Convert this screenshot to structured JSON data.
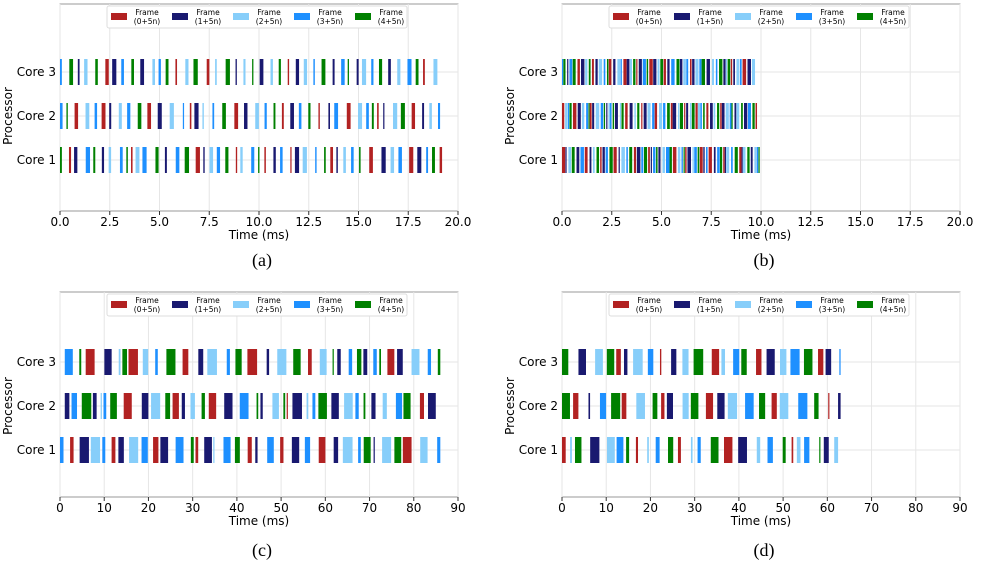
{
  "colors": {
    "frame0": "#b22222",
    "frame1": "#191970",
    "frame2": "#87cefa",
    "frame3": "#1e90ff",
    "frame4": "#008000"
  },
  "legend_entries": [
    {
      "line1": "Frame",
      "line2": "(0+5n)",
      "color_key": "frame0"
    },
    {
      "line1": "Frame",
      "line2": "(1+5n)",
      "color_key": "frame1"
    },
    {
      "line1": "Frame",
      "line2": "(2+5n)",
      "color_key": "frame2"
    },
    {
      "line1": "Frame",
      "line2": "(3+5n)",
      "color_key": "frame3"
    },
    {
      "line1": "Frame",
      "line2": "(4+5n)",
      "color_key": "frame4"
    }
  ],
  "chart_data": [
    {
      "type": "gantt",
      "caption": "(a)",
      "xlabel": "Time (ms)",
      "ylabel": "Processor",
      "xlim": [
        0,
        20
      ],
      "xticks": [
        "0.0",
        "2.5",
        "5.0",
        "7.5",
        "10.0",
        "12.5",
        "15.0",
        "17.5",
        "20.0"
      ],
      "rows": [
        "Core 3",
        "Core 2",
        "Core 1"
      ],
      "row_end_times": [
        19.1,
        19.1,
        19.2
      ],
      "bar_style": "sparse",
      "grid": true,
      "legend_position": "top"
    },
    {
      "type": "gantt",
      "caption": "(b)",
      "xlabel": "Time (ms)",
      "ylabel": "Processor",
      "xlim": [
        0,
        20
      ],
      "xticks": [
        "0.0",
        "2.5",
        "5.0",
        "7.5",
        "10.0",
        "12.5",
        "15.0",
        "17.5",
        "20.0"
      ],
      "rows": [
        "Core 3",
        "Core 2",
        "Core 1"
      ],
      "row_end_times": [
        9.7,
        9.8,
        9.9
      ],
      "bar_style": "dense",
      "grid": true,
      "legend_position": "top"
    },
    {
      "type": "gantt",
      "caption": "(c)",
      "xlabel": "Time (ms)",
      "ylabel": "Processor",
      "xlim": [
        0,
        90
      ],
      "xticks": [
        "0",
        "10",
        "20",
        "30",
        "40",
        "50",
        "60",
        "70",
        "80",
        "90"
      ],
      "rows": [
        "Core 3",
        "Core 2",
        "Core 1"
      ],
      "row_end_times": [
        86,
        86,
        86
      ],
      "bar_style": "medium",
      "grid": true,
      "legend_position": "top"
    },
    {
      "type": "gantt",
      "caption": "(d)",
      "xlabel": "Time (ms)",
      "ylabel": "Processor",
      "xlim": [
        0,
        90
      ],
      "xticks": [
        "0",
        "10",
        "20",
        "30",
        "40",
        "50",
        "60",
        "70",
        "80",
        "90"
      ],
      "rows": [
        "Core 3",
        "Core 2",
        "Core 1"
      ],
      "row_end_times": [
        63,
        63,
        63
      ],
      "bar_style": "medium",
      "grid": true,
      "legend_position": "top"
    }
  ]
}
